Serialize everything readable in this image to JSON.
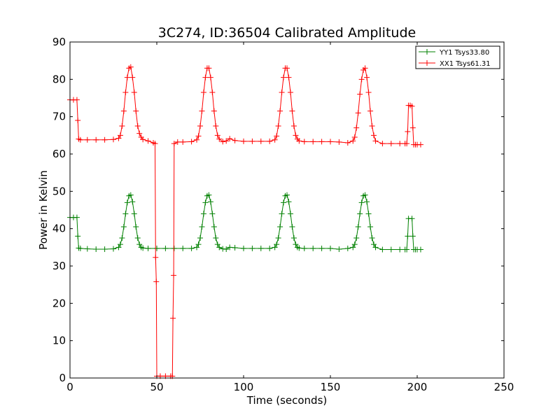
{
  "chart_data": {
    "type": "line",
    "title": "3C274, ID:36504 Calibrated Amplitude",
    "xlabel": "Time (seconds)",
    "ylabel": "Power in Kelvin",
    "xlim": [
      0,
      250
    ],
    "ylim": [
      0,
      90
    ],
    "xticks": [
      0,
      50,
      100,
      150,
      200,
      250
    ],
    "yticks": [
      0,
      10,
      20,
      30,
      40,
      50,
      60,
      70,
      80,
      90
    ],
    "grid": false,
    "legend_position": "top-right",
    "marker": "+",
    "series": [
      {
        "name": "YY1 Tsys33.80",
        "color": "#008000",
        "x": [
          0,
          2,
          4,
          4.5,
          5,
          6,
          10,
          15,
          20,
          25,
          28,
          29,
          30,
          31,
          32,
          33,
          34,
          35,
          36,
          37,
          38,
          39,
          40,
          41,
          42,
          45,
          50,
          55,
          60,
          65,
          70,
          73,
          74,
          75,
          76,
          77,
          78,
          79,
          80,
          81,
          82,
          83,
          84,
          85,
          86,
          88,
          90,
          92,
          95,
          100,
          105,
          110,
          115,
          118,
          119,
          120,
          121,
          122,
          123,
          124,
          125,
          126,
          127,
          128,
          129,
          130,
          131,
          132,
          135,
          140,
          145,
          150,
          155,
          160,
          163,
          164,
          165,
          166,
          167,
          168,
          169,
          170,
          171,
          172,
          173,
          174,
          175,
          176,
          180,
          185,
          190,
          193,
          194,
          194.5,
          195,
          197,
          197.5,
          198,
          199,
          200,
          202
        ],
        "y": [
          43,
          43,
          43,
          38,
          34.8,
          34.7,
          34.6,
          34.5,
          34.5,
          34.6,
          35.0,
          35.8,
          37.5,
          40.5,
          44.0,
          47.0,
          48.8,
          49.0,
          47.2,
          44.0,
          40.5,
          37.5,
          35.8,
          35.0,
          34.8,
          34.7,
          34.7,
          34.7,
          34.7,
          34.7,
          34.7,
          35.0,
          35.8,
          37.5,
          40.5,
          44.0,
          47.0,
          48.8,
          49.0,
          47.2,
          44.0,
          40.5,
          37.5,
          35.8,
          35.0,
          34.6,
          34.5,
          35.0,
          34.9,
          34.7,
          34.7,
          34.7,
          34.7,
          35.0,
          35.8,
          37.5,
          40.5,
          44.0,
          47.0,
          48.8,
          49.0,
          47.2,
          44.0,
          40.5,
          37.5,
          35.8,
          35.0,
          34.8,
          34.7,
          34.7,
          34.7,
          34.7,
          34.5,
          34.7,
          35.0,
          35.8,
          37.5,
          40.5,
          44.0,
          47.0,
          48.8,
          49.0,
          47.2,
          44.0,
          40.5,
          37.5,
          35.8,
          35.0,
          34.4,
          34.4,
          34.4,
          34.4,
          34.4,
          38.0,
          42.7,
          42.7,
          38.0,
          34.4,
          34.4,
          34.4,
          34.4
        ]
      },
      {
        "name": "XX1 Tsys61.31",
        "color": "#ff0000",
        "x": [
          0,
          2,
          4,
          4.5,
          5,
          6,
          10,
          15,
          20,
          25,
          28,
          29,
          30,
          31,
          32,
          33,
          34,
          35,
          36,
          37,
          38,
          39,
          40,
          41,
          42,
          45,
          48,
          49,
          49.3,
          49.7,
          50,
          52,
          55,
          58,
          59,
          59.3,
          59.7,
          60,
          62,
          65,
          70,
          73,
          74,
          75,
          76,
          77,
          78,
          79,
          80,
          81,
          82,
          83,
          84,
          85,
          86,
          88,
          90,
          92,
          95,
          100,
          105,
          110,
          115,
          118,
          119,
          120,
          121,
          122,
          123,
          124,
          125,
          126,
          127,
          128,
          129,
          130,
          131,
          132,
          135,
          140,
          145,
          150,
          155,
          160,
          163,
          164,
          165,
          166,
          167,
          168,
          169,
          170,
          171,
          172,
          173,
          174,
          175,
          176,
          180,
          185,
          190,
          193,
          194,
          194.5,
          195,
          196,
          197,
          197.5,
          198,
          199,
          200,
          202
        ],
        "y": [
          74.5,
          74.5,
          74.5,
          69,
          64,
          63.8,
          63.8,
          63.8,
          63.8,
          63.9,
          64.2,
          65.0,
          67.5,
          71.5,
          76.5,
          80.5,
          83.0,
          83.3,
          80.5,
          76.5,
          71.5,
          67.5,
          65.5,
          64.5,
          63.9,
          63.5,
          63.0,
          62.8,
          32.3,
          25.8,
          0.5,
          0.5,
          0.5,
          0.5,
          0.5,
          16,
          27.5,
          62.8,
          63.2,
          63.2,
          63.3,
          63.8,
          64.8,
          67.5,
          71.5,
          76.5,
          80.5,
          83.0,
          83.0,
          80.5,
          76.5,
          71.5,
          67.5,
          65.0,
          64.0,
          63.3,
          63.5,
          64.1,
          63.6,
          63.4,
          63.4,
          63.4,
          63.4,
          63.8,
          64.8,
          67.5,
          71.5,
          76.5,
          80.5,
          83.0,
          83.0,
          80.5,
          76.5,
          71.5,
          67.5,
          65.0,
          64.0,
          63.5,
          63.3,
          63.3,
          63.3,
          63.3,
          63.2,
          63.0,
          63.5,
          64.5,
          67.0,
          71.0,
          76.0,
          80.0,
          82.5,
          83.0,
          80.5,
          76.5,
          71.5,
          67.5,
          65.0,
          63.5,
          62.8,
          62.8,
          62.8,
          62.8,
          62.8,
          66,
          73,
          73,
          72.8,
          67,
          62.5,
          62.5,
          62.5,
          62.5
        ]
      }
    ]
  }
}
